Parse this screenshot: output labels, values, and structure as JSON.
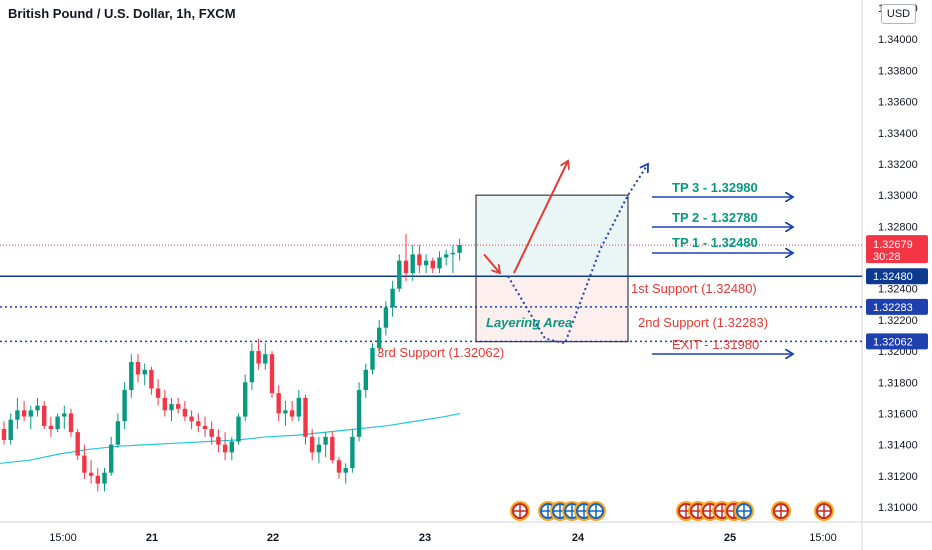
{
  "header": {
    "title": "British Pound / U.S. Dollar, 1h, FXCM",
    "currency": "USD"
  },
  "chart_data": {
    "type": "candlestick",
    "title": "British Pound / U.S. Dollar, 1h, FXCM",
    "ylim": [
      1.309,
      1.3424
    ],
    "y_ticks": [
      "1.34000",
      "1.33800",
      "1.33600",
      "1.33400",
      "1.33200",
      "1.33000",
      "1.32800",
      "1.32600",
      "1.32400",
      "1.32200",
      "1.32000",
      "1.31800",
      "1.31600",
      "1.31400",
      "1.31200",
      "1.31000"
    ],
    "top_partial_tick": "1.34200",
    "x_ticks": [
      "15:00",
      "21",
      "22",
      "23",
      "24",
      "25",
      "15:00"
    ],
    "current_price": {
      "value": "1.32679",
      "countdown": "30:28"
    },
    "price_badges": [
      "1.32480",
      "1.32283",
      "1.32062"
    ],
    "levels": [
      {
        "name": "TP 3 - 1.32980",
        "price": 1.3298
      },
      {
        "name": "TP 2 - 1.32780",
        "price": 1.3278
      },
      {
        "name": "TP 1 - 1.32480",
        "price": 1.3248
      },
      {
        "name": "1st Support (1.32480)",
        "price": 1.3248
      },
      {
        "name": "2nd Support (1.32283)",
        "price": 1.32283
      },
      {
        "name": "3rd Support (1.32062)",
        "price": 1.32062
      },
      {
        "name": "EXIT - 1.31980",
        "price": 1.3198
      }
    ],
    "annotation": "Layering Area",
    "candles": [
      [
        1.315,
        1.3155,
        1.314,
        1.3143
      ],
      [
        1.3143,
        1.316,
        1.314,
        1.3156
      ],
      [
        1.3156,
        1.317,
        1.315,
        1.3162
      ],
      [
        1.3162,
        1.3168,
        1.3155,
        1.3158
      ],
      [
        1.3158,
        1.3165,
        1.315,
        1.3162
      ],
      [
        1.3162,
        1.317,
        1.3158,
        1.3165
      ],
      [
        1.3165,
        1.3168,
        1.315,
        1.3152
      ],
      [
        1.3152,
        1.3158,
        1.3145,
        1.315
      ],
      [
        1.315,
        1.316,
        1.3148,
        1.3158
      ],
      [
        1.3158,
        1.3165,
        1.315,
        1.316
      ],
      [
        1.316,
        1.3163,
        1.3145,
        1.3148
      ],
      [
        1.3148,
        1.315,
        1.313,
        1.3133
      ],
      [
        1.3133,
        1.314,
        1.3118,
        1.3122
      ],
      [
        1.3122,
        1.313,
        1.3115,
        1.312
      ],
      [
        1.312,
        1.3125,
        1.311,
        1.3115
      ],
      [
        1.3115,
        1.3125,
        1.311,
        1.3122
      ],
      [
        1.3122,
        1.3145,
        1.312,
        1.314
      ],
      [
        1.314,
        1.316,
        1.3138,
        1.3155
      ],
      [
        1.3155,
        1.318,
        1.315,
        1.3175
      ],
      [
        1.3175,
        1.3198,
        1.317,
        1.3193
      ],
      [
        1.3193,
        1.3198,
        1.318,
        1.3185
      ],
      [
        1.3185,
        1.3192,
        1.3178,
        1.3188
      ],
      [
        1.3188,
        1.319,
        1.3172,
        1.3176
      ],
      [
        1.3176,
        1.3182,
        1.3165,
        1.317
      ],
      [
        1.317,
        1.3175,
        1.3158,
        1.3162
      ],
      [
        1.3162,
        1.317,
        1.3155,
        1.3166
      ],
      [
        1.3166,
        1.317,
        1.316,
        1.3163
      ],
      [
        1.3163,
        1.3168,
        1.3155,
        1.3158
      ],
      [
        1.3158,
        1.3162,
        1.315,
        1.3155
      ],
      [
        1.3155,
        1.316,
        1.3148,
        1.3152
      ],
      [
        1.3152,
        1.3158,
        1.3145,
        1.315
      ],
      [
        1.315,
        1.3155,
        1.314,
        1.3145
      ],
      [
        1.3145,
        1.315,
        1.3135,
        1.314
      ],
      [
        1.314,
        1.3148,
        1.313,
        1.3135
      ],
      [
        1.3135,
        1.3145,
        1.313,
        1.3142
      ],
      [
        1.3142,
        1.316,
        1.314,
        1.3158
      ],
      [
        1.3158,
        1.3185,
        1.3155,
        1.318
      ],
      [
        1.318,
        1.3205,
        1.3175,
        1.32
      ],
      [
        1.32,
        1.3208,
        1.3188,
        1.3192
      ],
      [
        1.3192,
        1.3205,
        1.3188,
        1.3198
      ],
      [
        1.3198,
        1.32,
        1.317,
        1.3173
      ],
      [
        1.3173,
        1.3178,
        1.3155,
        1.316
      ],
      [
        1.316,
        1.3168,
        1.3152,
        1.3162
      ],
      [
        1.3162,
        1.3168,
        1.3155,
        1.3158
      ],
      [
        1.3158,
        1.3175,
        1.3155,
        1.317
      ],
      [
        1.317,
        1.3172,
        1.314,
        1.3145
      ],
      [
        1.3145,
        1.315,
        1.313,
        1.3135
      ],
      [
        1.3135,
        1.3145,
        1.3128,
        1.314
      ],
      [
        1.314,
        1.3148,
        1.3132,
        1.3145
      ],
      [
        1.3145,
        1.3148,
        1.3128,
        1.313
      ],
      [
        1.313,
        1.3132,
        1.3118,
        1.3122
      ],
      [
        1.3122,
        1.3128,
        1.3115,
        1.3125
      ],
      [
        1.3125,
        1.315,
        1.3122,
        1.3145
      ],
      [
        1.3145,
        1.318,
        1.3142,
        1.3175
      ],
      [
        1.3175,
        1.3192,
        1.317,
        1.3188
      ],
      [
        1.3188,
        1.3205,
        1.3185,
        1.3202
      ],
      [
        1.3202,
        1.322,
        1.3198,
        1.3215
      ],
      [
        1.3215,
        1.3232,
        1.321,
        1.3228
      ],
      [
        1.3228,
        1.3245,
        1.3222,
        1.324
      ],
      [
        1.324,
        1.3262,
        1.3238,
        1.3258
      ],
      [
        1.3258,
        1.3275,
        1.3245,
        1.325
      ],
      [
        1.325,
        1.3268,
        1.3245,
        1.3262
      ],
      [
        1.3262,
        1.3268,
        1.325,
        1.3255
      ],
      [
        1.3255,
        1.3262,
        1.325,
        1.3258
      ],
      [
        1.3258,
        1.326,
        1.325,
        1.3253
      ],
      [
        1.3253,
        1.3264,
        1.325,
        1.326
      ],
      [
        1.326,
        1.3265,
        1.3255,
        1.3262
      ],
      [
        1.3262,
        1.3268,
        1.325,
        1.3263
      ],
      [
        1.3263,
        1.3272,
        1.3258,
        1.3268
      ]
    ],
    "moving_average": [
      [
        0,
        1.3128
      ],
      [
        30,
        1.313
      ],
      [
        60,
        1.3134
      ],
      [
        90,
        1.3137
      ],
      [
        120,
        1.3139
      ],
      [
        150,
        1.314
      ],
      [
        180,
        1.3141
      ],
      [
        210,
        1.3142
      ],
      [
        240,
        1.3143
      ],
      [
        270,
        1.3145
      ],
      [
        300,
        1.3146
      ],
      [
        330,
        1.3148
      ],
      [
        360,
        1.315
      ],
      [
        390,
        1.3152
      ],
      [
        420,
        1.3155
      ],
      [
        450,
        1.3158
      ],
      [
        465,
        1.316
      ]
    ]
  }
}
